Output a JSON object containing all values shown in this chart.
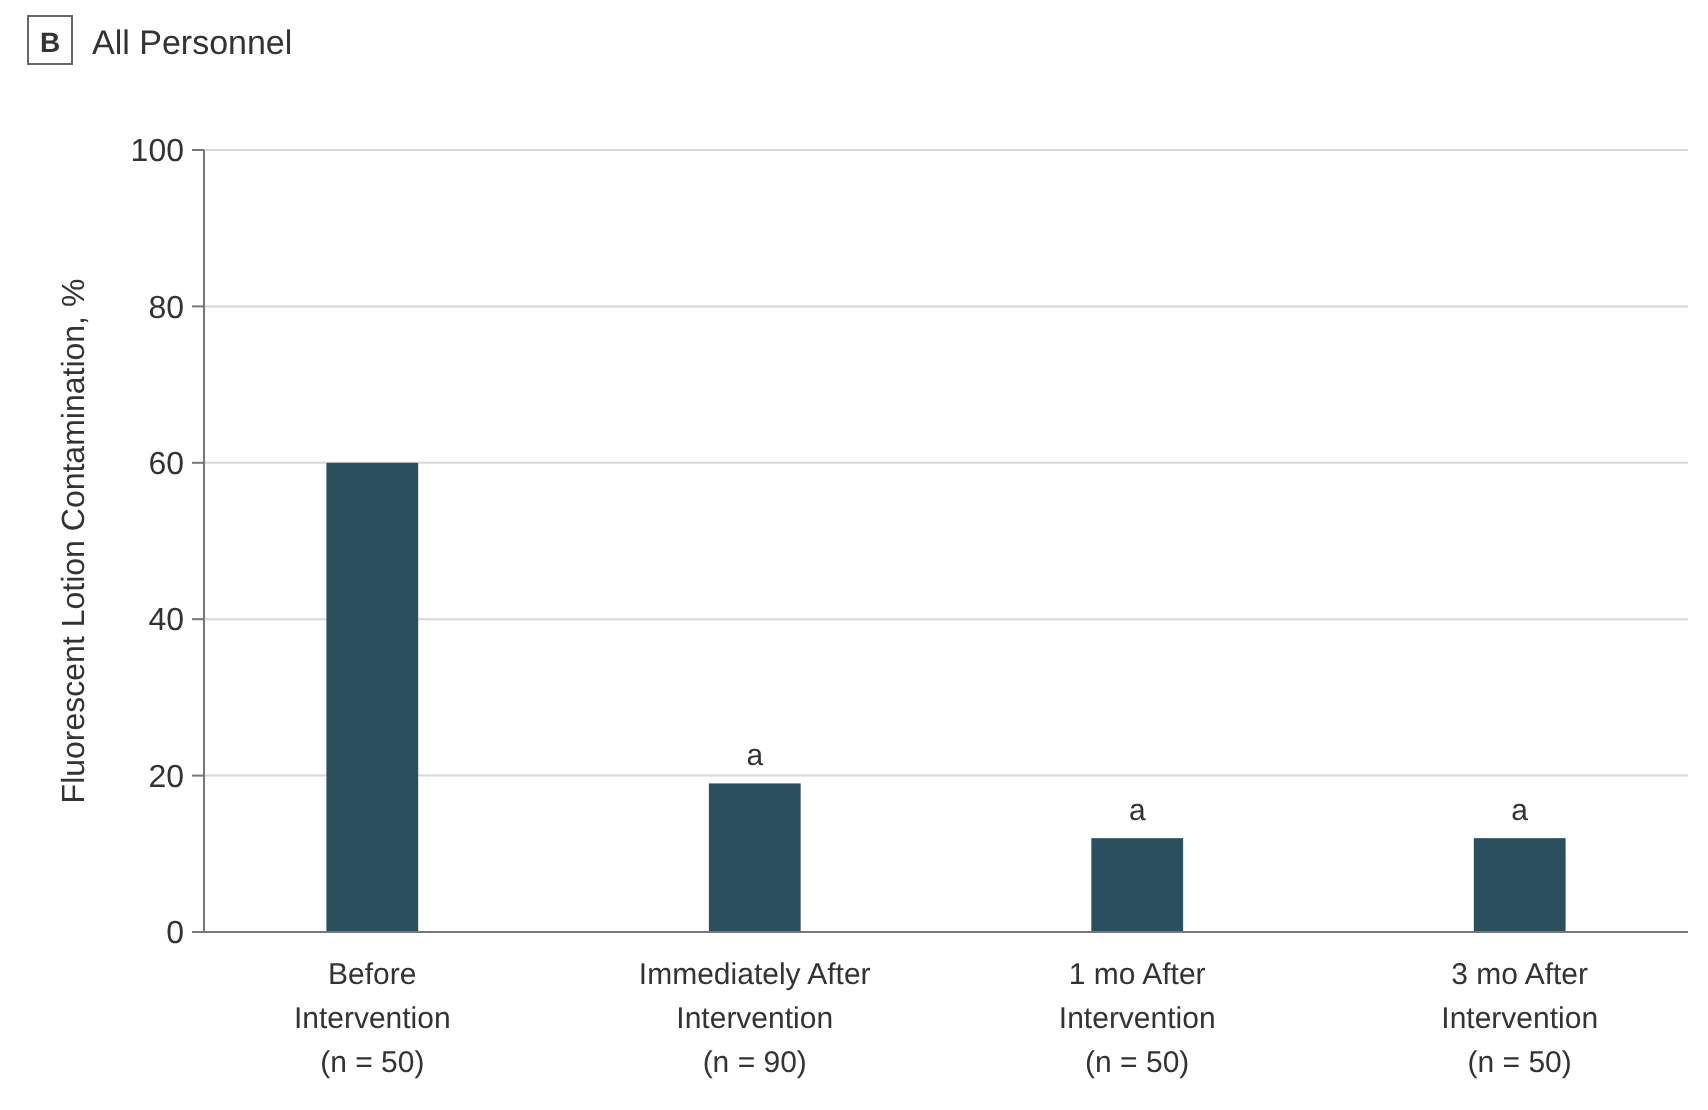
{
  "chart_data": {
    "type": "bar",
    "title": "All Personnel",
    "categories": [
      "Before\nIntervention\n(n = 50)",
      "Immediately After\nIntervention\n(n = 90)",
      "1 mo After\nIntervention\n(n = 50)",
      "3 mo After\nIntervention\n(n = 50)"
    ],
    "values": [
      60,
      19,
      12,
      12
    ],
    "color": "#2b4f5c",
    "ylabel": "Fluorescent Lotion Contamination, %",
    "ylim": [
      0,
      100
    ],
    "yticks": [
      0,
      20,
      40,
      60,
      80,
      100
    ],
    "grid": "y",
    "annotations": [
      "B",
      {
        "text": "a",
        "x": "Immediately After\nIntervention\n(n = 90)",
        "y": 19
      },
      {
        "text": "a",
        "x": "1 mo After\nIntervention\n(n = 50)",
        "y": 12
      },
      {
        "text": "a",
        "x": "3 mo After\nIntervention\n(n = 50)",
        "y": 12
      }
    ]
  }
}
